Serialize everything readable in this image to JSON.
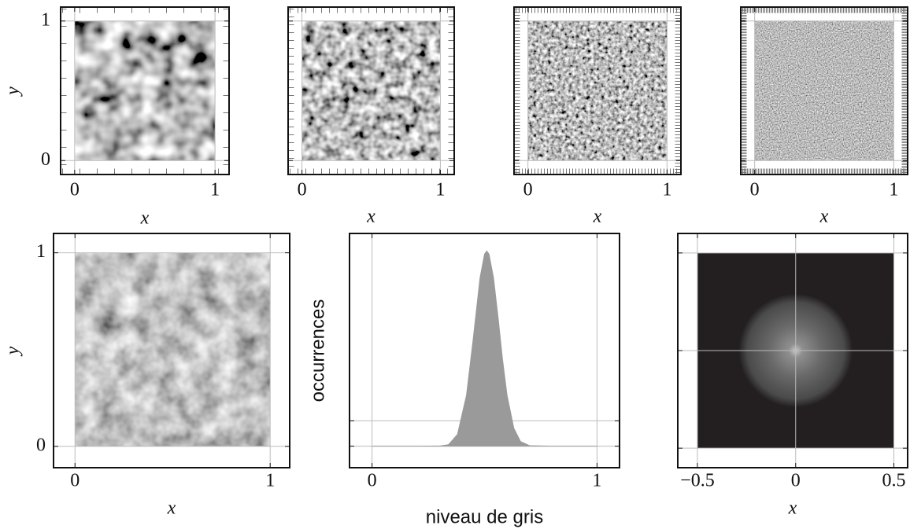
{
  "chart_data": [
    {
      "type": "image",
      "extent": [
        0,
        1,
        0,
        1
      ],
      "xlim": [
        -0.1,
        1.1
      ],
      "ylim": [
        -0.1,
        1.1
      ],
      "xticks": [
        0,
        1
      ],
      "yticks": [
        0,
        1
      ],
      "xlabel": "x",
      "ylabel": "y",
      "grid": true
    },
    {
      "type": "image",
      "extent": [
        0,
        1,
        0,
        1
      ],
      "xlim": [
        -0.1,
        1.1
      ],
      "ylim": [
        -0.1,
        1.1
      ],
      "xticks": [
        0,
        1
      ],
      "yticks": [
        0,
        1
      ],
      "show_yticklabels": false,
      "xlabel": "x",
      "grid": true
    },
    {
      "type": "image",
      "extent": [
        0,
        1,
        0,
        1
      ],
      "xlim": [
        -0.1,
        1.1
      ],
      "ylim": [
        -0.1,
        1.1
      ],
      "xticks": [
        0,
        1
      ],
      "yticks": [
        0,
        1
      ],
      "show_yticklabels": false,
      "xlabel": "x",
      "grid": true
    },
    {
      "type": "image",
      "extent": [
        0,
        1,
        0,
        1
      ],
      "xlim": [
        -0.1,
        1.1
      ],
      "ylim": [
        -0.1,
        1.1
      ],
      "xticks": [
        0,
        1
      ],
      "yticks": [
        0,
        1
      ],
      "show_yticklabels": false,
      "xlabel": "x",
      "grid": true
    },
    {
      "type": "image",
      "extent": [
        0,
        1,
        0,
        1
      ],
      "xlim": [
        -0.11,
        1.1
      ],
      "ylim": [
        -0.11,
        1.1
      ],
      "xticks": [
        0,
        1
      ],
      "yticks": [
        0,
        1
      ],
      "xlabel": "x",
      "ylabel": "y",
      "grid": true
    },
    {
      "type": "histogram",
      "xlim": [
        -0.1,
        1.1
      ],
      "ylim": [
        -0.11,
        1.09
      ],
      "xticks": [
        0,
        1
      ],
      "yticks": [
        0,
        0.13
      ],
      "show_yticklabels": false,
      "xlabel": "niveau de gris",
      "ylabel": "occurrences",
      "grid": true,
      "color": "#9a9a9a",
      "x": [
        0,
        0.1,
        0.2,
        0.3,
        0.34,
        0.38,
        0.42,
        0.45,
        0.48,
        0.5,
        0.51,
        0.52,
        0.54,
        0.56,
        0.58,
        0.6,
        0.63,
        0.66,
        0.7,
        0.8,
        0.9,
        1
      ],
      "values": [
        0,
        0,
        0,
        0.001,
        0.008,
        0.061,
        0.262,
        0.552,
        0.862,
        0.984,
        1,
        0.984,
        0.862,
        0.662,
        0.445,
        0.262,
        0.093,
        0.024,
        0.003,
        0,
        0,
        0
      ]
    },
    {
      "type": "spectrum",
      "extent": [
        -0.5,
        0.5,
        -0.5,
        0.5
      ],
      "xlim": [
        -0.6,
        0.57
      ],
      "ylim": [
        -0.6,
        0.6
      ],
      "xticks": [
        {
          "value": -0.5,
          "label": "−0.5"
        },
        0,
        0.5
      ],
      "yticks": [
        -0.5,
        0,
        0.5
      ],
      "show_yticklabels": false,
      "xlabel": "x",
      "grid": true
    }
  ]
}
